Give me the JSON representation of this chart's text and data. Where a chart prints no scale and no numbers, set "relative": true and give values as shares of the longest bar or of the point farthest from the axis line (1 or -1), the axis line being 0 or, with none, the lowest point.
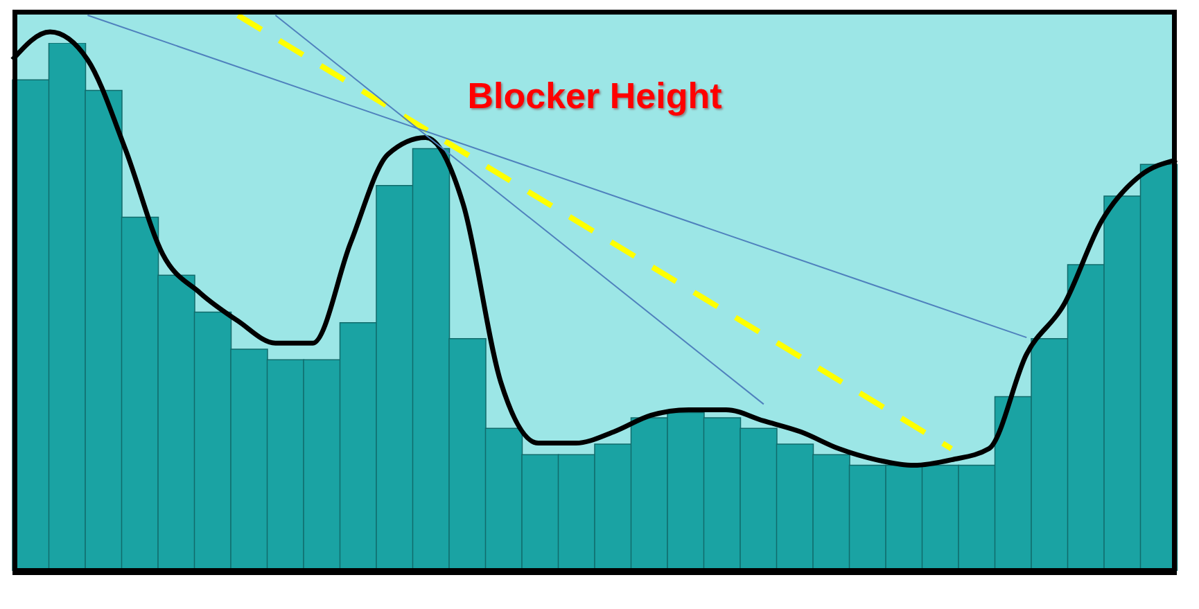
{
  "chart_data": [
    {
      "type": "bar",
      "title": "Blocker Height",
      "relative": true,
      "legend": false,
      "grid": false,
      "categories": [
        null,
        null,
        null,
        null,
        null,
        null,
        null,
        null,
        null,
        null,
        null,
        null,
        null,
        null,
        null,
        null,
        null,
        null,
        null,
        null,
        null,
        null,
        null,
        null,
        null,
        null,
        null,
        null,
        null,
        null,
        null,
        null
      ],
      "series": [
        {
          "color": "#1aa3a3",
          "values": [
            0.93,
            1.0,
            0.91,
            0.67,
            0.56,
            0.49,
            0.42,
            0.4,
            0.4,
            0.47,
            0.73,
            0.8,
            0.44,
            0.27,
            0.22,
            0.22,
            0.24,
            0.29,
            0.3,
            0.29,
            0.27,
            0.24,
            0.22,
            0.2,
            0.2,
            0.2,
            0.2,
            0.33,
            0.44,
            0.58,
            0.71,
            0.77
          ]
        }
      ]
    },
    {
      "type": "line",
      "relative": true,
      "legend": false,
      "grid": false,
      "categories": [
        null,
        null,
        null,
        null,
        null,
        null,
        null,
        null,
        null,
        null,
        null,
        null,
        null,
        null,
        null,
        null,
        null,
        null,
        null,
        null,
        null,
        null,
        null,
        null,
        null,
        null,
        null,
        null,
        null,
        null,
        null,
        null
      ],
      "series": [
        {
          "color": "#000000",
          "line_style": "solid",
          "values": [
            0.92,
            0.97,
            0.92,
            0.76,
            0.57,
            0.5,
            0.45,
            0.41,
            0.41,
            0.59,
            0.75,
            0.78,
            0.66,
            0.34,
            0.23,
            0.23,
            0.25,
            0.28,
            0.29,
            0.29,
            0.27,
            0.25,
            0.22,
            0.2,
            0.19,
            0.2,
            0.22,
            0.39,
            0.48,
            0.63,
            0.71,
            0.74
          ]
        },
        {
          "color": "#ffff00",
          "line_style": "dashed",
          "values": [
            null,
            null,
            null,
            null,
            null,
            null,
            1.0,
            null,
            null,
            null,
            null,
            null,
            null,
            null,
            null,
            null,
            null,
            null,
            null,
            null,
            null,
            null,
            null,
            null,
            null,
            0.22,
            null,
            null,
            null,
            null,
            null,
            null
          ]
        },
        {
          "color": "#4f81bd",
          "line_style": "solid",
          "values": [
            null,
            null,
            1.0,
            null,
            null,
            null,
            null,
            null,
            null,
            null,
            null,
            null,
            null,
            null,
            null,
            null,
            null,
            null,
            null,
            null,
            null,
            null,
            null,
            null,
            null,
            null,
            null,
            0.42,
            null,
            null,
            null,
            null
          ]
        },
        {
          "color": "#4f81bd",
          "line_style": "solid",
          "values": [
            null,
            null,
            null,
            null,
            null,
            null,
            null,
            1.0,
            null,
            null,
            null,
            null,
            null,
            null,
            null,
            null,
            null,
            null,
            null,
            null,
            0.3,
            null,
            null,
            null,
            null,
            null,
            null,
            null,
            null,
            null,
            null,
            null
          ]
        }
      ]
    }
  ]
}
